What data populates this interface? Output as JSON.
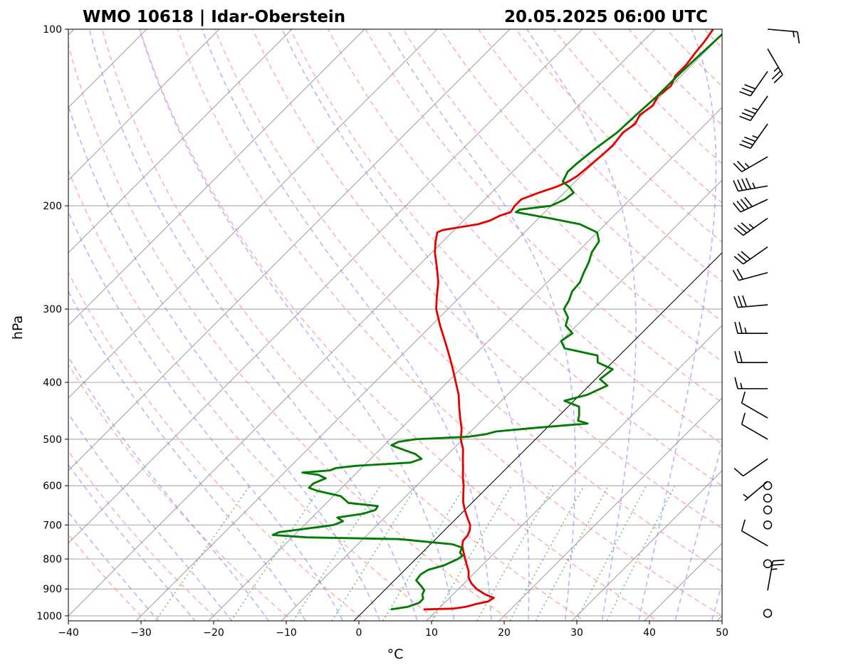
{
  "title_left": "WMO 10618 | Idar-Oberstein",
  "title_right": "20.05.2025 06:00 UTC",
  "chart_data": {
    "type": "line",
    "subtype": "skew-t log-p sounding",
    "xlabel": "°C",
    "ylabel": "hPa",
    "xlim": [
      -40,
      50
    ],
    "ylim": [
      1020,
      100
    ],
    "y_scale": "log",
    "x_ticks": [
      -40,
      -30,
      -20,
      -10,
      0,
      10,
      20,
      30,
      40,
      50
    ],
    "x_tick_labels": [
      "−40",
      "−30",
      "−20",
      "−10",
      "0",
      "10",
      "20",
      "30",
      "40",
      "50"
    ],
    "y_ticks": [
      1000,
      900,
      800,
      700,
      600,
      500,
      400,
      300,
      200,
      100
    ],
    "y_tick_labels": [
      "1000",
      "900",
      "800",
      "700",
      "600",
      "500",
      "400",
      "300",
      "200",
      "100"
    ],
    "grid": true,
    "reference_lines": {
      "dry_adiabats": "dashed, light red",
      "moist_adiabats": "dashed, light blue",
      "mixing_ratio_lines": "dotted, green",
      "isotherms": "solid, grey (skewed)",
      "zero_isotherm": "solid, black"
    },
    "series": [
      {
        "color": "#e60000",
        "points": [
          [
            975,
            8.0
          ],
          [
            972,
            12.0
          ],
          [
            965,
            13.5
          ],
          [
            955,
            14.5
          ],
          [
            945,
            15.8
          ],
          [
            932,
            16.1
          ],
          [
            920,
            14.5
          ],
          [
            900,
            12.5
          ],
          [
            880,
            11.0
          ],
          [
            860,
            9.8
          ],
          [
            840,
            9.0
          ],
          [
            820,
            7.9
          ],
          [
            800,
            6.8
          ],
          [
            780,
            5.7
          ],
          [
            760,
            4.6
          ],
          [
            745,
            4.0
          ],
          [
            730,
            3.9
          ],
          [
            715,
            3.5
          ],
          [
            700,
            2.8
          ],
          [
            680,
            1.4
          ],
          [
            660,
            0.0
          ],
          [
            640,
            -1.3
          ],
          [
            620,
            -2.4
          ],
          [
            600,
            -3.5
          ],
          [
            580,
            -4.8
          ],
          [
            560,
            -6.0
          ],
          [
            540,
            -7.3
          ],
          [
            520,
            -8.6
          ],
          [
            500,
            -10.3
          ],
          [
            480,
            -11.6
          ],
          [
            460,
            -13.3
          ],
          [
            440,
            -15.0
          ],
          [
            420,
            -16.7
          ],
          [
            400,
            -18.8
          ],
          [
            380,
            -21.0
          ],
          [
            360,
            -23.4
          ],
          [
            340,
            -26.0
          ],
          [
            320,
            -28.8
          ],
          [
            300,
            -31.6
          ],
          [
            285,
            -33.3
          ],
          [
            270,
            -35.0
          ],
          [
            255,
            -37.2
          ],
          [
            240,
            -39.6
          ],
          [
            230,
            -41.0
          ],
          [
            222,
            -42.0
          ],
          [
            220,
            -41.6
          ],
          [
            215,
            -37.5
          ],
          [
            212,
            -36.4
          ],
          [
            208,
            -35.7
          ],
          [
            205,
            -34.7
          ],
          [
            200,
            -35.0
          ],
          [
            195,
            -35.0
          ],
          [
            190,
            -33.5
          ],
          [
            186,
            -32.0
          ],
          [
            182,
            -31.0
          ],
          [
            178,
            -30.5
          ],
          [
            170,
            -30.2
          ],
          [
            165,
            -30.0
          ],
          [
            158,
            -29.8
          ],
          [
            150,
            -30.2
          ],
          [
            145,
            -29.7
          ],
          [
            140,
            -30.3
          ],
          [
            135,
            -29.8
          ],
          [
            130,
            -30.4
          ],
          [
            125,
            -30.0
          ],
          [
            120,
            -30.8
          ],
          [
            115,
            -30.8
          ],
          [
            110,
            -31.2
          ],
          [
            105,
            -31.5
          ],
          [
            100,
            -32.0
          ]
        ]
      },
      {
        "color": "#007a00",
        "points": [
          [
            975,
            3.5
          ],
          [
            965,
            5.5
          ],
          [
            950,
            6.5
          ],
          [
            935,
            6.5
          ],
          [
            920,
            5.8
          ],
          [
            905,
            5.5
          ],
          [
            890,
            4.5
          ],
          [
            870,
            3.0
          ],
          [
            850,
            2.8
          ],
          [
            835,
            3.2
          ],
          [
            820,
            4.8
          ],
          [
            800,
            5.8
          ],
          [
            790,
            6.0
          ],
          [
            780,
            5.2
          ],
          [
            765,
            4.8
          ],
          [
            755,
            3.0
          ],
          [
            740,
            -5.0
          ],
          [
            735,
            -18.0
          ],
          [
            728,
            -23.0
          ],
          [
            720,
            -22.5
          ],
          [
            705,
            -17.5
          ],
          [
            700,
            -16.0
          ],
          [
            690,
            -15.2
          ],
          [
            680,
            -16.5
          ],
          [
            670,
            -13.5
          ],
          [
            660,
            -12.3
          ],
          [
            650,
            -12.5
          ],
          [
            642,
            -17.0
          ],
          [
            635,
            -17.8
          ],
          [
            625,
            -19.0
          ],
          [
            612,
            -23.0
          ],
          [
            605,
            -24.5
          ],
          [
            595,
            -24.5
          ],
          [
            583,
            -23.5
          ],
          [
            575,
            -25.0
          ],
          [
            570,
            -27.5
          ],
          [
            565,
            -24.0
          ],
          [
            560,
            -23.5
          ],
          [
            555,
            -21.0
          ],
          [
            548,
            -14.0
          ],
          [
            540,
            -13.0
          ],
          [
            530,
            -14.5
          ],
          [
            520,
            -17.0
          ],
          [
            512,
            -19.0
          ],
          [
            505,
            -18.5
          ],
          [
            500,
            -16.5
          ],
          [
            495,
            -9.5
          ],
          [
            490,
            -7.5
          ],
          [
            485,
            -6.5
          ],
          [
            478,
            -1.5
          ],
          [
            470,
            5.0
          ],
          [
            465,
            3.3
          ],
          [
            455,
            2.7
          ],
          [
            440,
            1.5
          ],
          [
            430,
            -1.3
          ],
          [
            420,
            1.0
          ],
          [
            405,
            2.5
          ],
          [
            395,
            0.6
          ],
          [
            380,
            1.0
          ],
          [
            370,
            -2.0
          ],
          [
            360,
            -3.0
          ],
          [
            350,
            -8.5
          ],
          [
            340,
            -10.0
          ],
          [
            330,
            -9.5
          ],
          [
            320,
            -11.5
          ],
          [
            310,
            -12.3
          ],
          [
            300,
            -14.0
          ],
          [
            290,
            -14.5
          ],
          [
            280,
            -15.3
          ],
          [
            270,
            -15.5
          ],
          [
            260,
            -16.3
          ],
          [
            250,
            -17.0
          ],
          [
            240,
            -18.0
          ],
          [
            230,
            -18.5
          ],
          [
            222,
            -20.0
          ],
          [
            215,
            -23.5
          ],
          [
            210,
            -28.5
          ],
          [
            205,
            -34.0
          ],
          [
            203,
            -33.8
          ],
          [
            200,
            -30.0
          ],
          [
            195,
            -29.0
          ],
          [
            190,
            -28.7
          ],
          [
            186,
            -30.0
          ],
          [
            182,
            -31.7
          ],
          [
            175,
            -32.4
          ],
          [
            170,
            -32.3
          ],
          [
            160,
            -31.8
          ],
          [
            150,
            -31.0
          ],
          [
            140,
            -30.8
          ],
          [
            130,
            -30.5
          ],
          [
            120,
            -30.5
          ],
          [
            110,
            -30.3
          ],
          [
            100,
            -30.0
          ]
        ]
      }
    ],
    "wind_barbs": [
      {
        "p": 100,
        "speed_kt": 15,
        "dir_deg": 95
      },
      {
        "p": 108,
        "speed_kt": 25,
        "dir_deg": 150
      },
      {
        "p": 118,
        "speed_kt": 30,
        "dir_deg": 215
      },
      {
        "p": 130,
        "speed_kt": 35,
        "dir_deg": 215
      },
      {
        "p": 145,
        "speed_kt": 35,
        "dir_deg": 215
      },
      {
        "p": 165,
        "speed_kt": 25,
        "dir_deg": 240
      },
      {
        "p": 185,
        "speed_kt": 45,
        "dir_deg": 260
      },
      {
        "p": 195,
        "speed_kt": 40,
        "dir_deg": 245
      },
      {
        "p": 210,
        "speed_kt": 35,
        "dir_deg": 235
      },
      {
        "p": 235,
        "speed_kt": 30,
        "dir_deg": 235
      },
      {
        "p": 260,
        "speed_kt": 20,
        "dir_deg": 255
      },
      {
        "p": 295,
        "speed_kt": 30,
        "dir_deg": 265
      },
      {
        "p": 330,
        "speed_kt": 25,
        "dir_deg": 270
      },
      {
        "p": 370,
        "speed_kt": 20,
        "dir_deg": 270
      },
      {
        "p": 410,
        "speed_kt": 15,
        "dir_deg": 270
      },
      {
        "p": 460,
        "speed_kt": 10,
        "dir_deg": 300
      },
      {
        "p": 500,
        "speed_kt": 10,
        "dir_deg": 300
      },
      {
        "p": 540,
        "speed_kt": 10,
        "dir_deg": 235
      },
      {
        "p": 590,
        "speed_kt": 5,
        "dir_deg": 230
      },
      {
        "p": 600,
        "speed_kt": 0,
        "dir_deg": 0
      },
      {
        "p": 630,
        "speed_kt": 0,
        "dir_deg": 0
      },
      {
        "p": 660,
        "speed_kt": 0,
        "dir_deg": 0
      },
      {
        "p": 700,
        "speed_kt": 0,
        "dir_deg": 0
      },
      {
        "p": 760,
        "speed_kt": 10,
        "dir_deg": 300
      },
      {
        "p": 815,
        "speed_kt": 0,
        "dir_deg": 0
      },
      {
        "p": 905,
        "speed_kt": 25,
        "dir_deg": 10
      },
      {
        "p": 990,
        "speed_kt": 0,
        "dir_deg": 0
      }
    ]
  }
}
